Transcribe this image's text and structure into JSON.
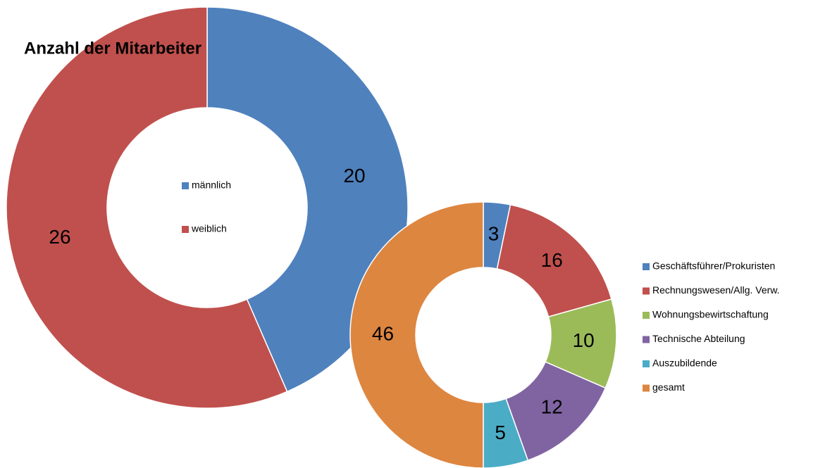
{
  "chart_data": [
    {
      "type": "donut",
      "title": "Anzahl der Mitarbeiter",
      "categories": [
        "männlich",
        "weiblich"
      ],
      "values": [
        20,
        26
      ],
      "colors": [
        "#4f81bd",
        "#c0504d"
      ],
      "legend": "center"
    },
    {
      "type": "donut",
      "categories": [
        "Geschäftsführer/Prokuristen",
        "Rechnungswesen/Allg. Verw.",
        "Wohnungsbewirtschaftung",
        "Technische Abteilung",
        "Auszubildende",
        "gesamt"
      ],
      "values": [
        3,
        16,
        10,
        12,
        5,
        46
      ],
      "colors": [
        "#4f81bd",
        "#c0504d",
        "#9bbb59",
        "#8064a2",
        "#4bacc6",
        "#dd8640"
      ],
      "legend": "right"
    }
  ]
}
